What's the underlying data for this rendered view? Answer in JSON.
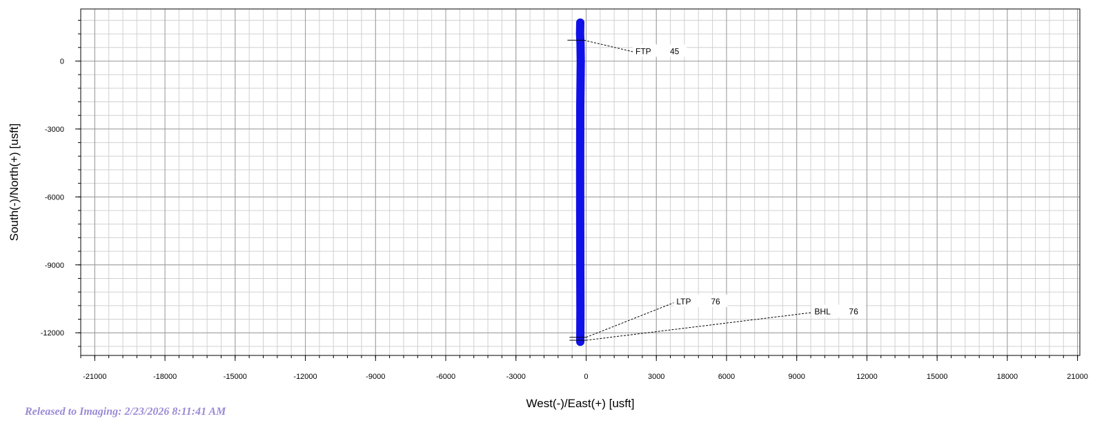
{
  "chart_data": {
    "type": "line",
    "title": "",
    "xlabel": "West(-)/East(+)  [usft]",
    "ylabel": "South(-)/North(+)  [usft]",
    "xlim": [
      -21600,
      21100
    ],
    "ylim": [
      -13000,
      2300
    ],
    "x_ticks": [
      -21000,
      -18000,
      -15000,
      -12000,
      -9000,
      -6000,
      -3000,
      0,
      3000,
      6000,
      9000,
      12000,
      15000,
      18000,
      21000
    ],
    "y_ticks": [
      0,
      -3000,
      -6000,
      -9000,
      -12000
    ],
    "x_minor_step": 600,
    "y_minor_step": 600,
    "grid": true,
    "series_color": "#1010e8",
    "series": [
      {
        "name": "",
        "x": [
          -250,
          -260,
          -240,
          -230,
          -250,
          -255,
          -250,
          -245,
          -250
        ],
        "y": [
          1700,
          1200,
          800,
          0,
          -2000,
          -5000,
          -9000,
          -11000,
          -12400
        ]
      }
    ],
    "annotations": [
      {
        "label": "FTP",
        "value": "45",
        "target": [
          -150,
          920
        ],
        "text_pos": [
          2050,
          400
        ]
      },
      {
        "label": "LTP",
        "value": "76",
        "target": [
          -60,
          -12200
        ],
        "text_pos": [
          3800,
          -10650
        ]
      },
      {
        "label": "BHL",
        "value": "76",
        "target": [
          -60,
          -12330
        ],
        "text_pos": [
          9700,
          -11100
        ]
      }
    ]
  },
  "footer": {
    "text": "Released to Imaging: 2/23/2026 8:11:41 AM"
  }
}
